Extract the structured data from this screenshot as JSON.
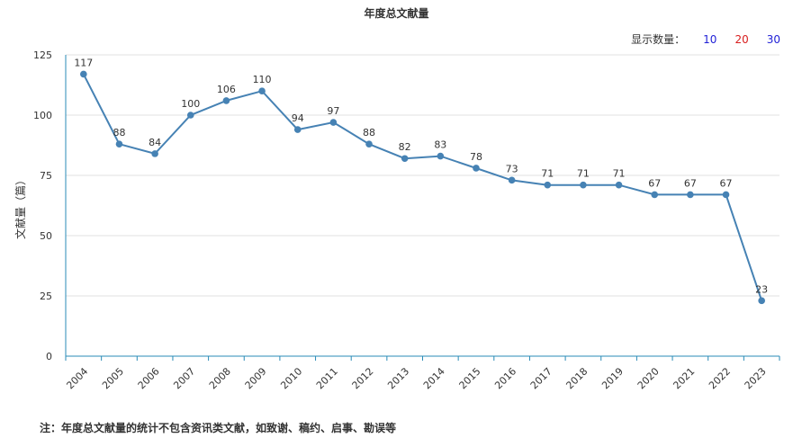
{
  "chart_data": {
    "type": "line",
    "title": "年度总文献量",
    "ylabel": "文献量（篇）",
    "xlabel": "",
    "ylim": [
      0,
      125
    ],
    "yticks": [
      0,
      25,
      50,
      75,
      100,
      125
    ],
    "grid": "horizontal",
    "categories": [
      "2004",
      "2005",
      "2006",
      "2007",
      "2008",
      "2009",
      "2010",
      "2011",
      "2012",
      "2013",
      "2014",
      "2015",
      "2016",
      "2017",
      "2018",
      "2019",
      "2020",
      "2021",
      "2022",
      "2023"
    ],
    "series": [
      {
        "values": [
          117,
          88,
          84,
          100,
          106,
          110,
          94,
          97,
          88,
          82,
          83,
          78,
          73,
          71,
          71,
          71,
          67,
          67,
          67,
          23
        ]
      }
    ],
    "colors": {
      "line": "#4682b4",
      "axis": "#2a8bb7",
      "grid": "#e0e0e0"
    }
  },
  "controls": {
    "label": "显示数量：",
    "options": [
      "10",
      "20",
      "30"
    ]
  },
  "note": "注：年度总文献量的统计不包含资讯类文献，如致谢、稿约、启事、勘误等"
}
